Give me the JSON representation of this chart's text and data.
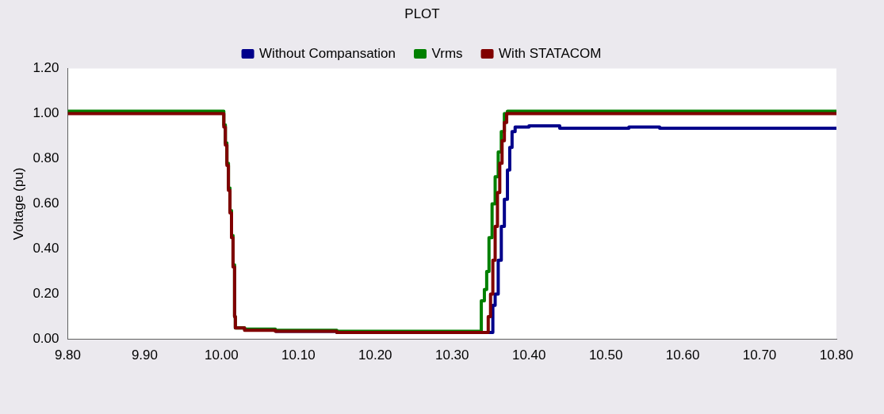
{
  "chart_data": {
    "type": "step",
    "title": "PLOT",
    "ylabel": "Voltage (pu)",
    "legend": "top",
    "xlim": [
      9.8,
      10.8
    ],
    "xticks": [
      {
        "value": 9.8,
        "label": "9.80"
      },
      {
        "value": 9.9,
        "label": "9.90"
      },
      {
        "value": 10,
        "label": "10.00"
      },
      {
        "value": 10.1,
        "label": "10.10"
      },
      {
        "value": 10.2,
        "label": "10.20"
      },
      {
        "value": 10.3,
        "label": "10.30"
      },
      {
        "value": 10.4,
        "label": "10.40"
      },
      {
        "value": 10.5,
        "label": "10.50"
      },
      {
        "value": 10.6,
        "label": "10.60"
      },
      {
        "value": 10.7,
        "label": "10.70"
      },
      {
        "value": 10.8,
        "label": "10.80"
      }
    ],
    "ylim": [
      0,
      1.2
    ],
    "yticks": [
      {
        "value": 0,
        "label": "0.00"
      },
      {
        "value": 0.2,
        "label": "0.20"
      },
      {
        "value": 0.4,
        "label": "0.40"
      },
      {
        "value": 0.6,
        "label": "0.60"
      },
      {
        "value": 0.8,
        "label": "0.80"
      },
      {
        "value": 1,
        "label": "1.00"
      },
      {
        "value": 1.2,
        "label": "1.20"
      }
    ],
    "series": [
      {
        "name": "Without Compansation",
        "color": "#00008b",
        "x": [
          10.07,
          10.15,
          10.353,
          10.356,
          10.36,
          10.364,
          10.368,
          10.372,
          10.375,
          10.378,
          10.382,
          10.4,
          10.44,
          10.53,
          10.57,
          10.8
        ],
        "values": [
          0.035,
          0.03,
          0.15,
          0.2,
          0.35,
          0.5,
          0.62,
          0.75,
          0.85,
          0.92,
          0.94,
          0.945,
          0.935,
          0.94,
          0.935,
          0.935
        ]
      },
      {
        "name": "Vrms",
        "color": "#008000",
        "x": [
          9.8,
          10.0,
          10.003,
          10.005,
          10.007,
          10.009,
          10.011,
          10.013,
          10.015,
          10.017,
          10.018,
          10.03,
          10.07,
          10.15,
          10.338,
          10.342,
          10.345,
          10.348,
          10.352,
          10.356,
          10.36,
          10.364,
          10.368,
          10.372,
          10.8
        ],
        "values": [
          1.01,
          1.01,
          0.95,
          0.87,
          0.78,
          0.67,
          0.57,
          0.46,
          0.33,
          0.1,
          0.05,
          0.045,
          0.04,
          0.035,
          0.17,
          0.22,
          0.3,
          0.45,
          0.6,
          0.72,
          0.83,
          0.92,
          1.0,
          1.01,
          1.01
        ]
      },
      {
        "name": "With STATACOM",
        "color": "#800000",
        "x": [
          9.8,
          10.0,
          10.003,
          10.005,
          10.007,
          10.009,
          10.011,
          10.013,
          10.015,
          10.017,
          10.018,
          10.03,
          10.07,
          10.15,
          10.347,
          10.35,
          10.353,
          10.356,
          10.359,
          10.362,
          10.365,
          10.368,
          10.371,
          10.8
        ],
        "values": [
          1.0,
          1.0,
          0.94,
          0.86,
          0.77,
          0.66,
          0.56,
          0.45,
          0.32,
          0.1,
          0.05,
          0.04,
          0.035,
          0.03,
          0.1,
          0.2,
          0.35,
          0.5,
          0.65,
          0.78,
          0.88,
          0.96,
          1.0,
          1.0
        ]
      }
    ]
  }
}
